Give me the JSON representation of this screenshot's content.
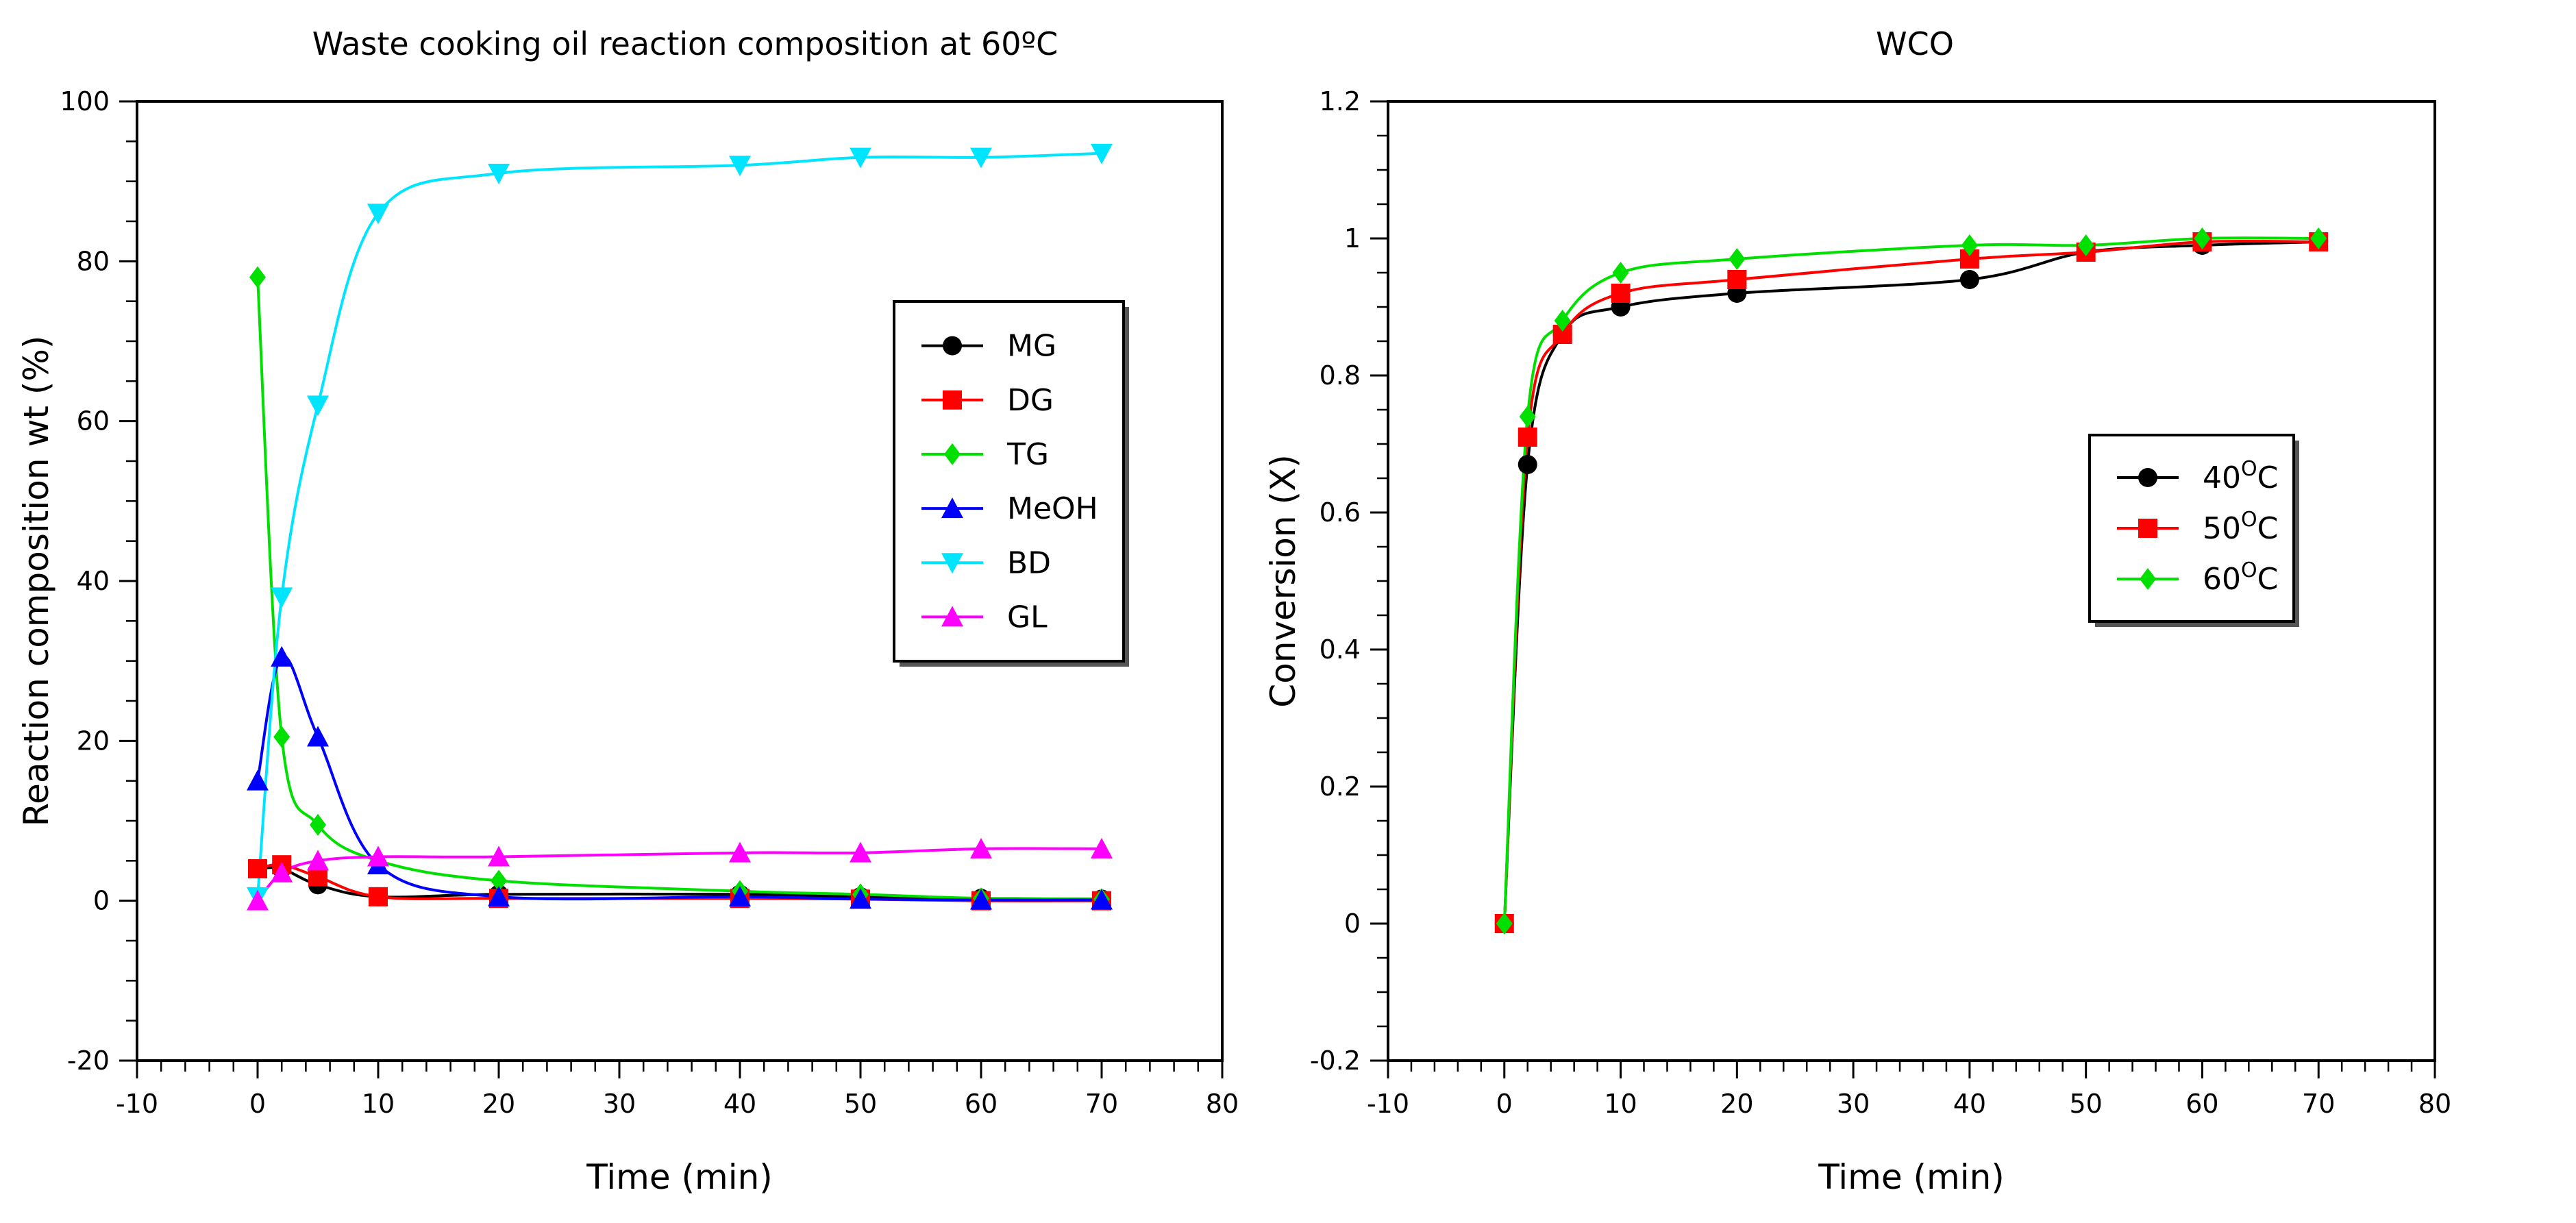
{
  "chart_data": [
    {
      "type": "line",
      "title": "Waste cooking oil reaction composition at 60ºC",
      "xlabel": "Time (min)",
      "ylabel": "Reaction composition wt (%)",
      "xlim": [
        -10,
        80
      ],
      "ylim": [
        -20,
        100
      ],
      "xticks": [
        -10,
        0,
        10,
        20,
        30,
        40,
        50,
        60,
        70,
        80
      ],
      "yticks": [
        -20,
        0,
        20,
        40,
        60,
        80,
        100
      ],
      "legend_position": "right",
      "x": [
        0,
        2,
        5,
        10,
        20,
        40,
        50,
        60,
        70
      ],
      "series": [
        {
          "name": "MG",
          "color": "#000000",
          "marker": "circle",
          "values": [
            4,
            4,
            2,
            0.5,
            0.8,
            0.8,
            0.5,
            0.3,
            0.2
          ]
        },
        {
          "name": "DG",
          "color": "#ff0000",
          "marker": "square",
          "values": [
            4,
            4.5,
            3,
            0.5,
            0.3,
            0.3,
            0.2,
            0,
            0
          ]
        },
        {
          "name": "TG",
          "color": "#00e000",
          "marker": "diamond",
          "values": [
            78,
            20.5,
            9.5,
            5,
            2.5,
            1.2,
            0.8,
            0.3,
            0.2
          ]
        },
        {
          "name": "MeOH",
          "color": "#0000ff",
          "marker": "triangle-up",
          "values": [
            15,
            30.5,
            20.5,
            4.5,
            0.5,
            0.5,
            0.2,
            0.1,
            0.1
          ]
        },
        {
          "name": "BD",
          "color": "#00e5ff",
          "marker": "triangle-down",
          "values": [
            0.5,
            38,
            62,
            86,
            91,
            92,
            93,
            93,
            93.5
          ]
        },
        {
          "name": "GL",
          "color": "#ff00ff",
          "marker": "triangle-up",
          "values": [
            0,
            3.5,
            5,
            5.5,
            5.5,
            6,
            6,
            6.5,
            6.5
          ]
        }
      ]
    },
    {
      "type": "line",
      "title": "WCO",
      "xlabel": "Time (min)",
      "ylabel": "Conversion (X)",
      "xlim": [
        -10,
        80
      ],
      "ylim": [
        -0.2,
        1.2
      ],
      "xticks": [
        -10,
        0,
        10,
        20,
        30,
        40,
        50,
        60,
        70,
        80
      ],
      "yticks": [
        -0.2,
        0,
        0.2,
        0.4,
        0.6,
        0.8,
        1,
        1.2
      ],
      "legend_position": "right",
      "x": [
        0,
        2,
        5,
        10,
        20,
        40,
        50,
        60,
        70
      ],
      "series": [
        {
          "name": "40",
          "name_suffix": "C",
          "color": "#000000",
          "marker": "circle",
          "values": [
            0,
            0.67,
            0.86,
            0.9,
            0.92,
            0.94,
            0.98,
            0.99,
            0.995
          ]
        },
        {
          "name": "50",
          "name_suffix": "C",
          "color": "#ff0000",
          "marker": "square",
          "values": [
            0,
            0.71,
            0.86,
            0.92,
            0.94,
            0.97,
            0.98,
            0.995,
            0.995
          ]
        },
        {
          "name": "60",
          "name_suffix": "C",
          "color": "#00e000",
          "marker": "diamond",
          "values": [
            0,
            0.74,
            0.88,
            0.95,
            0.97,
            0.99,
            0.99,
            1.0,
            1.0
          ]
        }
      ]
    }
  ]
}
